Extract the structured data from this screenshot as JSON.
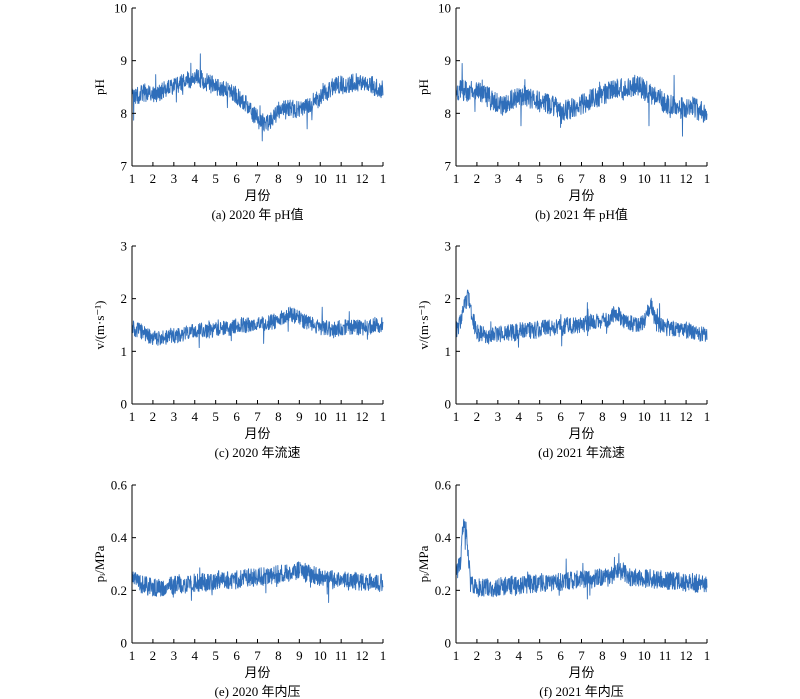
{
  "style": {
    "line_color": "#2F6EBA",
    "axis_color": "#000000",
    "background": "#FFFFFF"
  },
  "months_axis": [
    "1",
    "2",
    "3",
    "4",
    "5",
    "6",
    "7",
    "8",
    "9",
    "10",
    "11",
    "12",
    "1"
  ],
  "chart_data": [
    {
      "type": "line",
      "caption": "(a) 2020 年 pH值",
      "xlabel": "月份",
      "ylabel": "pH",
      "ylim": [
        7,
        10
      ],
      "yticks": [
        "7",
        "8",
        "9",
        "10"
      ],
      "series": [
        {
          "noise": 0.17,
          "x": [
            1,
            1.3,
            1.6,
            2,
            2.4,
            2.8,
            3.2,
            3.5,
            3.8,
            4.1,
            4.5,
            4.8,
            5.1,
            5.4,
            5.8,
            6.1,
            6.4,
            6.8,
            7.1,
            7.4,
            7.7,
            8,
            8.3,
            8.6,
            9,
            9.3,
            9.6,
            10,
            10.3,
            10.6,
            11,
            11.3,
            11.6,
            12,
            12.3,
            12.6,
            13
          ],
          "values": [
            8.3,
            8.35,
            8.4,
            8.35,
            8.4,
            8.5,
            8.55,
            8.6,
            8.65,
            8.7,
            8.6,
            8.55,
            8.5,
            8.45,
            8.4,
            8.3,
            8.2,
            8.0,
            7.85,
            7.8,
            7.9,
            8.05,
            8.15,
            8.1,
            8.05,
            8.15,
            8.2,
            8.3,
            8.4,
            8.5,
            8.55,
            8.5,
            8.6,
            8.55,
            8.6,
            8.5,
            8.45
          ]
        }
      ]
    },
    {
      "type": "line",
      "caption": "(b) 2021 年 pH值",
      "xlabel": "月份",
      "ylabel": "pH",
      "ylim": [
        7,
        10
      ],
      "yticks": [
        "7",
        "8",
        "9",
        "10"
      ],
      "series": [
        {
          "noise": 0.2,
          "x": [
            1,
            1.3,
            1.6,
            2,
            2.4,
            2.8,
            3.2,
            3.5,
            3.8,
            4.1,
            4.5,
            4.8,
            5.1,
            5.4,
            5.8,
            6.1,
            6.4,
            6.8,
            7.1,
            7.4,
            7.7,
            8,
            8.3,
            8.6,
            9,
            9.3,
            9.6,
            10,
            10.3,
            10.6,
            11,
            11.3,
            11.6,
            12,
            12.3,
            12.6,
            13
          ],
          "values": [
            8.45,
            8.45,
            8.4,
            8.45,
            8.35,
            8.25,
            8.15,
            8.2,
            8.3,
            8.35,
            8.3,
            8.25,
            8.2,
            8.2,
            8.1,
            8.05,
            8.1,
            8.15,
            8.2,
            8.25,
            8.3,
            8.35,
            8.4,
            8.5,
            8.45,
            8.5,
            8.55,
            8.45,
            8.35,
            8.3,
            8.2,
            8.15,
            8.1,
            8.1,
            8.15,
            8.05,
            8.0
          ]
        }
      ]
    },
    {
      "type": "line",
      "caption": "(c) 2020 年流速",
      "xlabel": "月份",
      "ylabel": "v/(m·s⁻¹)",
      "ylim": [
        0,
        3
      ],
      "yticks": [
        "0",
        "1",
        "2",
        "3"
      ],
      "series": [
        {
          "noise": 0.15,
          "x": [
            1,
            1.3,
            1.6,
            2,
            2.4,
            2.8,
            3.2,
            3.5,
            3.8,
            4.1,
            4.5,
            4.8,
            5.1,
            5.4,
            5.8,
            6.1,
            6.4,
            6.8,
            7.1,
            7.4,
            7.7,
            8,
            8.3,
            8.6,
            9,
            9.3,
            9.6,
            10,
            10.3,
            10.6,
            11,
            11.3,
            11.6,
            12,
            12.3,
            12.6,
            13
          ],
          "values": [
            1.45,
            1.4,
            1.35,
            1.25,
            1.25,
            1.3,
            1.3,
            1.35,
            1.35,
            1.4,
            1.4,
            1.4,
            1.45,
            1.45,
            1.45,
            1.5,
            1.5,
            1.5,
            1.5,
            1.55,
            1.55,
            1.6,
            1.65,
            1.7,
            1.65,
            1.55,
            1.5,
            1.45,
            1.45,
            1.4,
            1.45,
            1.45,
            1.45,
            1.45,
            1.45,
            1.5,
            1.5
          ]
        }
      ]
    },
    {
      "type": "line",
      "caption": "(d) 2021 年流速",
      "xlabel": "月份",
      "ylabel": "v/(m·s⁻¹)",
      "ylim": [
        0,
        3
      ],
      "yticks": [
        "0",
        "1",
        "2",
        "3"
      ],
      "series": [
        {
          "noise": 0.16,
          "x": [
            1,
            1.2,
            1.4,
            1.6,
            1.8,
            2,
            2.4,
            2.8,
            3.2,
            3.5,
            3.8,
            4.1,
            4.5,
            4.8,
            5.1,
            5.4,
            5.8,
            6.1,
            6.4,
            6.8,
            7.1,
            7.4,
            7.7,
            8,
            8.3,
            8.6,
            9,
            9.3,
            9.6,
            10,
            10.3,
            10.6,
            11,
            11.3,
            11.6,
            12,
            12.3,
            12.6,
            13
          ],
          "values": [
            1.4,
            1.55,
            1.9,
            2.05,
            1.6,
            1.35,
            1.3,
            1.3,
            1.35,
            1.35,
            1.35,
            1.4,
            1.4,
            1.4,
            1.45,
            1.45,
            1.45,
            1.45,
            1.5,
            1.5,
            1.5,
            1.55,
            1.55,
            1.6,
            1.6,
            1.75,
            1.6,
            1.55,
            1.5,
            1.55,
            1.9,
            1.5,
            1.45,
            1.45,
            1.4,
            1.4,
            1.4,
            1.35,
            1.35
          ]
        }
      ]
    },
    {
      "type": "line",
      "caption": "(e) 2020 年内压",
      "xlabel": "月份",
      "ylabel": "pᵢ/MPa",
      "ylim": [
        0,
        0.6
      ],
      "yticks": [
        "0",
        "0.2",
        "0.4",
        "0.6"
      ],
      "series": [
        {
          "noise": 0.035,
          "x": [
            1,
            1.3,
            1.6,
            2,
            2.4,
            2.8,
            3.2,
            3.5,
            3.8,
            4.1,
            4.5,
            4.8,
            5.1,
            5.4,
            5.8,
            6.1,
            6.4,
            6.8,
            7.1,
            7.4,
            7.7,
            8,
            8.3,
            8.6,
            9,
            9.3,
            9.6,
            10,
            10.3,
            10.6,
            11,
            11.3,
            11.6,
            12,
            12.3,
            12.6,
            13
          ],
          "values": [
            0.24,
            0.23,
            0.22,
            0.21,
            0.21,
            0.22,
            0.22,
            0.22,
            0.23,
            0.23,
            0.23,
            0.235,
            0.24,
            0.24,
            0.24,
            0.24,
            0.245,
            0.25,
            0.25,
            0.255,
            0.26,
            0.26,
            0.265,
            0.27,
            0.275,
            0.27,
            0.26,
            0.25,
            0.245,
            0.24,
            0.24,
            0.235,
            0.235,
            0.235,
            0.23,
            0.23,
            0.23
          ]
        }
      ]
    },
    {
      "type": "line",
      "caption": "(f) 2021 年内压",
      "xlabel": "月份",
      "ylabel": "pᵢ/MPa",
      "ylim": [
        0,
        0.6
      ],
      "yticks": [
        "0",
        "0.2",
        "0.4",
        "0.6"
      ],
      "series": [
        {
          "noise": 0.035,
          "x": [
            1,
            1.2,
            1.35,
            1.5,
            1.7,
            2,
            2.4,
            2.8,
            3.2,
            3.5,
            3.8,
            4.1,
            4.5,
            4.8,
            5.1,
            5.4,
            5.8,
            6.1,
            6.4,
            6.8,
            7.1,
            7.4,
            7.7,
            8,
            8.3,
            8.6,
            9,
            9.3,
            9.6,
            10,
            10.3,
            10.6,
            11,
            11.3,
            11.6,
            12,
            12.3,
            12.6,
            13
          ],
          "values": [
            0.26,
            0.3,
            0.45,
            0.42,
            0.22,
            0.21,
            0.21,
            0.21,
            0.215,
            0.22,
            0.22,
            0.22,
            0.225,
            0.225,
            0.23,
            0.23,
            0.23,
            0.235,
            0.235,
            0.24,
            0.24,
            0.24,
            0.245,
            0.25,
            0.25,
            0.27,
            0.27,
            0.25,
            0.25,
            0.245,
            0.245,
            0.24,
            0.24,
            0.235,
            0.235,
            0.23,
            0.23,
            0.225,
            0.225
          ]
        }
      ]
    }
  ]
}
